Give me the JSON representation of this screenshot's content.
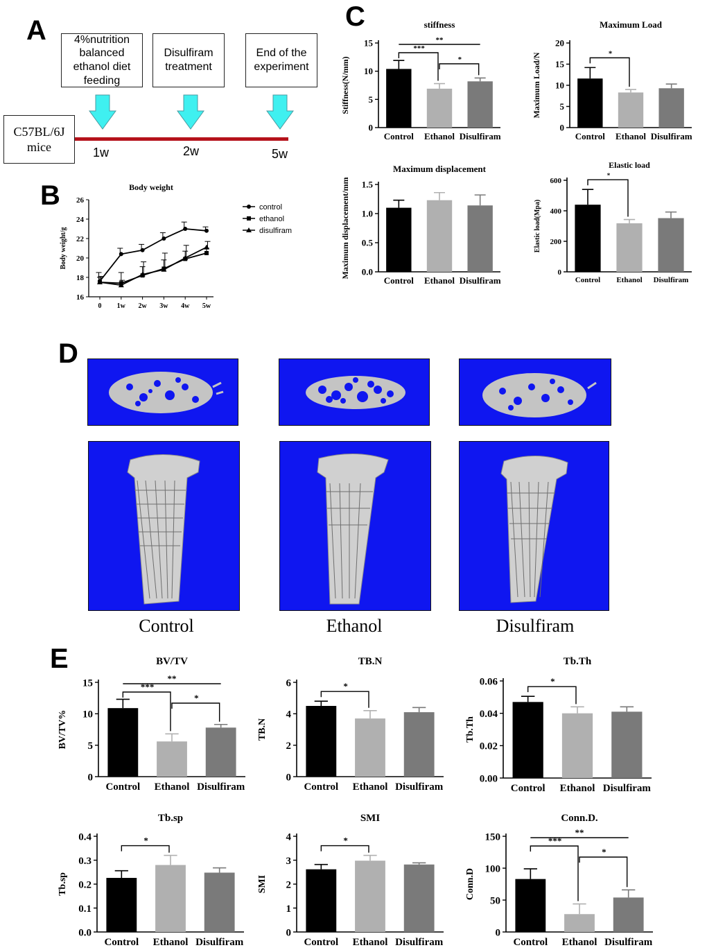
{
  "panels": {
    "A": "A",
    "B": "B",
    "C": "C",
    "D": "D",
    "E": "E"
  },
  "timeline": {
    "boxes": [
      "4%nutrition\nbalanced\nethanol diet\nfeeding",
      "Disulfiram\ntreatment",
      "End of the\nexperiment"
    ],
    "mouse_label": "C57BL/6J\nmice",
    "weeks": [
      "1w",
      "2w",
      "5w"
    ],
    "bar_color": "#b5121b",
    "arrow_color": "#3ff0f0"
  },
  "ct": {
    "captions": [
      "Control",
      "Ethanol",
      "Disulfiram"
    ],
    "background_color": "#0f16f0",
    "bone_color": "#c8c8c8"
  },
  "colors": {
    "control": "#000000",
    "ethanol": "#b0b0b0",
    "disulfiram": "#7a7a7a"
  },
  "chart_data": [
    {
      "id": "body-weight",
      "type": "line",
      "title": "Body weight",
      "ylabel": "Body weight/g",
      "xlabel": "",
      "categories": [
        "0",
        "1w",
        "2w",
        "3w",
        "4w",
        "5w"
      ],
      "ylim": [
        16,
        26
      ],
      "yticks": [
        16,
        18,
        20,
        22,
        24,
        26
      ],
      "legend_position": "right",
      "series": [
        {
          "name": "control",
          "marker": "circle",
          "values": [
            17.6,
            20.4,
            20.8,
            22.0,
            23.0,
            22.8
          ],
          "errors": [
            0.9,
            0.6,
            0.6,
            0.6,
            0.7,
            0.4
          ]
        },
        {
          "name": "ethanol",
          "marker": "square",
          "values": [
            17.5,
            17.4,
            18.2,
            18.9,
            19.9,
            20.5
          ],
          "errors": [
            0.5,
            1.1,
            0.9,
            0.9,
            0.8,
            0.5
          ]
        },
        {
          "name": "disulfiram",
          "marker": "triangle",
          "values": [
            17.5,
            17.2,
            18.3,
            18.8,
            20.0,
            21.1
          ],
          "errors": [
            0.6,
            0.5,
            1.3,
            1.7,
            1.3,
            0.6
          ]
        }
      ]
    },
    {
      "id": "stiffness",
      "type": "bar",
      "title": "stiffness",
      "ylabel": "Stiffness(N/mm)",
      "categories": [
        "Control",
        "Ethanol",
        "Disulfiram"
      ],
      "values": [
        10.4,
        6.9,
        8.2
      ],
      "errors": [
        1.5,
        0.9,
        0.6
      ],
      "ylim": [
        0,
        15
      ],
      "yticks": [
        "0",
        "5",
        "10",
        "15"
      ],
      "annotations": [
        {
          "from": 1,
          "to": 2,
          "label": "***"
        },
        {
          "from": 2,
          "to": 3,
          "label": "*"
        },
        {
          "from": 1,
          "to": 3,
          "label": "**"
        }
      ]
    },
    {
      "id": "maximum-load",
      "type": "bar",
      "title": "Maximum Load",
      "ylabel": "Maximum Load/N",
      "categories": [
        "Control",
        "Ethanol",
        "Disulfiram"
      ],
      "values": [
        11.6,
        8.3,
        9.3
      ],
      "errors": [
        2.6,
        0.7,
        1.0
      ],
      "ylim": [
        0,
        20
      ],
      "yticks": [
        "0",
        "5",
        "10",
        "15",
        "20"
      ],
      "annotations": [
        {
          "from": 1,
          "to": 2,
          "label": "*"
        }
      ]
    },
    {
      "id": "maximum-displacement",
      "type": "bar",
      "title": "Maximum displacement",
      "ylabel": "Maximum displacement/mm",
      "categories": [
        "Control",
        "Ethanol",
        "Disulfiram"
      ],
      "values": [
        1.1,
        1.23,
        1.14
      ],
      "errors": [
        0.13,
        0.13,
        0.18
      ],
      "ylim": [
        0,
        1.5
      ],
      "yticks": [
        "0.0",
        "0.5",
        "1.0",
        "1.5"
      ],
      "annotations": []
    },
    {
      "id": "elastic-load",
      "type": "bar",
      "title": "Elastic load",
      "ylabel": "Elastic load(Mpa)",
      "categories": [
        "Control",
        "Ethanol",
        "Disulfiram"
      ],
      "values": [
        440,
        318,
        352
      ],
      "errors": [
        100,
        25,
        40
      ],
      "ylim": [
        0,
        600
      ],
      "yticks": [
        "0",
        "200",
        "400",
        "600"
      ],
      "annotations": [
        {
          "from": 1,
          "to": 2,
          "label": "*"
        }
      ]
    },
    {
      "id": "bv-tv",
      "type": "bar",
      "title": "BV/TV",
      "ylabel": "BV/TV%",
      "categories": [
        "Control",
        "Ethanol",
        "Disulfiram"
      ],
      "values": [
        10.9,
        5.6,
        7.8
      ],
      "errors": [
        1.4,
        1.2,
        0.5
      ],
      "ylim": [
        0,
        15
      ],
      "yticks": [
        "0",
        "5",
        "10",
        "15"
      ],
      "annotations": [
        {
          "from": 1,
          "to": 2,
          "label": "***"
        },
        {
          "from": 2,
          "to": 3,
          "label": "*"
        },
        {
          "from": 1,
          "to": 3,
          "label": "**"
        }
      ]
    },
    {
      "id": "tb-n",
      "type": "bar",
      "title": "TB.N",
      "ylabel": "TB.N",
      "categories": [
        "Control",
        "Ethanol",
        "Disulfiram"
      ],
      "values": [
        4.5,
        3.7,
        4.1
      ],
      "errors": [
        0.3,
        0.5,
        0.3
      ],
      "ylim": [
        0,
        6
      ],
      "yticks": [
        "0",
        "2",
        "4",
        "6"
      ],
      "annotations": [
        {
          "from": 1,
          "to": 2,
          "label": "*"
        }
      ]
    },
    {
      "id": "tb-th",
      "type": "bar",
      "title": "Tb.Th",
      "ylabel": "Tb.Th",
      "categories": [
        "Control",
        "Ethanol",
        "Disulfiram"
      ],
      "values": [
        0.047,
        0.04,
        0.041
      ],
      "errors": [
        0.0035,
        0.004,
        0.003
      ],
      "ylim": [
        0,
        0.06
      ],
      "yticks": [
        "0.00",
        "0.02",
        "0.04",
        "0.06"
      ],
      "annotations": [
        {
          "from": 1,
          "to": 2,
          "label": "*"
        }
      ]
    },
    {
      "id": "tb-sp",
      "type": "bar",
      "title": "Tb.sp",
      "ylabel": "Tb.sp",
      "categories": [
        "Control",
        "Ethanol",
        "Disulfiram"
      ],
      "values": [
        0.226,
        0.28,
        0.248
      ],
      "errors": [
        0.03,
        0.04,
        0.02
      ],
      "ylim": [
        0,
        0.4
      ],
      "yticks": [
        "0.0",
        "0.1",
        "0.2",
        "0.3",
        "0.4"
      ],
      "annotations": [
        {
          "from": 1,
          "to": 2,
          "label": "*"
        }
      ]
    },
    {
      "id": "smi",
      "type": "bar",
      "title": "SMI",
      "ylabel": "SMI",
      "categories": [
        "Control",
        "Ethanol",
        "Disulfiram"
      ],
      "values": [
        2.62,
        2.98,
        2.82
      ],
      "errors": [
        0.2,
        0.22,
        0.07
      ],
      "ylim": [
        0,
        4
      ],
      "yticks": [
        "0",
        "1",
        "2",
        "3",
        "4"
      ],
      "annotations": [
        {
          "from": 1,
          "to": 2,
          "label": "*"
        }
      ]
    },
    {
      "id": "conn-d",
      "type": "bar",
      "title": "Conn.D.",
      "ylabel": "Conn.D",
      "categories": [
        "Control",
        "Ethanol",
        "Disulfiram"
      ],
      "values": [
        83,
        28,
        54
      ],
      "errors": [
        16,
        16,
        12
      ],
      "ylim": [
        0,
        150
      ],
      "yticks": [
        "0",
        "50",
        "100",
        "150"
      ],
      "annotations": [
        {
          "from": 1,
          "to": 2,
          "label": "***"
        },
        {
          "from": 2,
          "to": 3,
          "label": "*"
        },
        {
          "from": 1,
          "to": 3,
          "label": "**"
        }
      ]
    }
  ]
}
